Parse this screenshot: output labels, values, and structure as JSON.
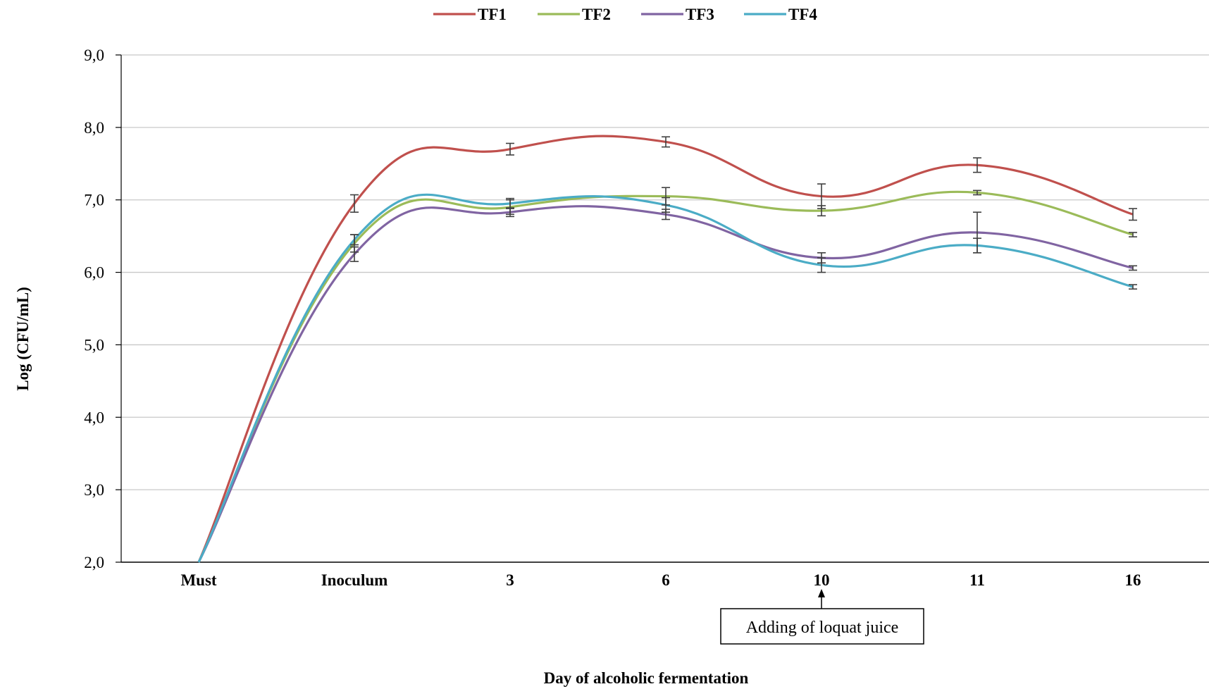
{
  "chart_data": {
    "type": "line",
    "title": "",
    "xlabel": "Day of alcoholic fermentation",
    "ylabel": "Log (CFU/mL)",
    "ylim": [
      2.0,
      9.0
    ],
    "yticks": [
      "2,0",
      "3,0",
      "4,0",
      "5,0",
      "6,0",
      "7,0",
      "8,0",
      "9,0"
    ],
    "grid": true,
    "legend_position": "top-center",
    "categories": [
      "Must",
      "Inoculum",
      "3",
      "6",
      "10",
      "11",
      "16"
    ],
    "series": [
      {
        "name": "TF1",
        "color": "#c0504d",
        "values": [
          2.0,
          6.95,
          7.7,
          7.8,
          7.05,
          7.48,
          6.8
        ],
        "errors": [
          0,
          0.12,
          0.08,
          0.07,
          0.17,
          0.1,
          0.08
        ]
      },
      {
        "name": "TF2",
        "color": "#9bbb59",
        "values": [
          2.0,
          6.4,
          6.9,
          7.05,
          6.85,
          7.1,
          6.52
        ],
        "errors": [
          0,
          0.12,
          0.1,
          0.12,
          0.07,
          0.03,
          0.03
        ]
      },
      {
        "name": "TF3",
        "color": "#8064a2",
        "values": [
          2.0,
          6.25,
          6.83,
          6.8,
          6.2,
          6.55,
          6.06
        ],
        "errors": [
          0,
          0.1,
          0.06,
          0.07,
          0.07,
          0.28,
          0.03
        ]
      },
      {
        "name": "TF4",
        "color": "#4bacc6",
        "values": [
          2.0,
          6.45,
          6.95,
          6.93,
          6.1,
          6.37,
          5.8
        ],
        "errors": [
          0,
          0.07,
          0.07,
          0.1,
          0.1,
          0.1,
          0.03
        ]
      }
    ],
    "annotations": [
      {
        "text": "Adding of loquat juice",
        "category": "10"
      }
    ]
  }
}
